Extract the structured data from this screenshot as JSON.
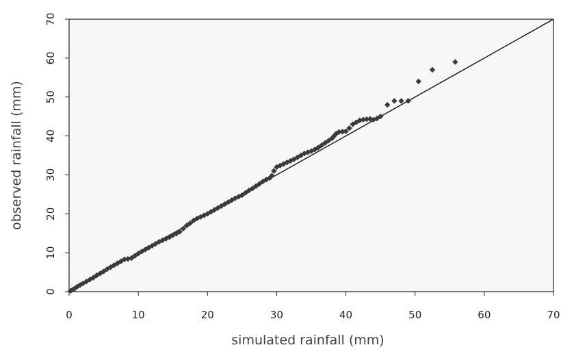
{
  "chart_data": {
    "type": "scatter",
    "title": "",
    "xlabel": "simulated rainfall (mm)",
    "ylabel": "observed rainfall (mm)",
    "xlim": [
      0,
      70
    ],
    "ylim": [
      0,
      70
    ],
    "x_ticks": [
      "0",
      "10",
      "20",
      "30",
      "40",
      "50",
      "60",
      "70"
    ],
    "y_ticks": [
      "0",
      "10",
      "20",
      "30",
      "40",
      "50",
      "60",
      "70"
    ],
    "grid": false,
    "legend": "none",
    "reference_line": {
      "from": [
        0,
        0
      ],
      "to": [
        70,
        70
      ]
    },
    "colors": {
      "background": "#ffffff",
      "plot_area": "#f7f7f7",
      "marker": "#3a3a3a",
      "line": "#2a2a2a",
      "axis": "#222222"
    },
    "series": [
      {
        "marker": "diamond",
        "points": [
          [
            0.2,
            0.2
          ],
          [
            0.5,
            0.5
          ],
          [
            0.8,
            0.8
          ],
          [
            1.2,
            1.3
          ],
          [
            1.6,
            1.7
          ],
          [
            2,
            2.1
          ],
          [
            2.5,
            2.6
          ],
          [
            3,
            3.1
          ],
          [
            3.5,
            3.6
          ],
          [
            4,
            4.2
          ],
          [
            4.5,
            4.7
          ],
          [
            5,
            5.2
          ],
          [
            5.5,
            5.8
          ],
          [
            6,
            6.3
          ],
          [
            6.5,
            6.8
          ],
          [
            7,
            7.3
          ],
          [
            7.5,
            7.8
          ],
          [
            8,
            8.3
          ],
          [
            8.5,
            8.4
          ],
          [
            9,
            8.6
          ],
          [
            9.5,
            9.2
          ],
          [
            10,
            9.8
          ],
          [
            10.5,
            10.3
          ],
          [
            11,
            10.8
          ],
          [
            11.5,
            11.3
          ],
          [
            12,
            11.8
          ],
          [
            12.5,
            12.3
          ],
          [
            13,
            12.8
          ],
          [
            13.5,
            13.2
          ],
          [
            14,
            13.6
          ],
          [
            14.5,
            14
          ],
          [
            15,
            14.5
          ],
          [
            15.5,
            14.9
          ],
          [
            16,
            15.4
          ],
          [
            16.5,
            16.2
          ],
          [
            17,
            17
          ],
          [
            17.5,
            17.6
          ],
          [
            18,
            18.3
          ],
          [
            18.5,
            18.8
          ],
          [
            19,
            19.2
          ],
          [
            19.5,
            19.6
          ],
          [
            20,
            20
          ],
          [
            20.5,
            20.5
          ],
          [
            21,
            21
          ],
          [
            21.5,
            21.5
          ],
          [
            22,
            22
          ],
          [
            22.5,
            22.5
          ],
          [
            23,
            23
          ],
          [
            23.5,
            23.5
          ],
          [
            24,
            24
          ],
          [
            24.5,
            24.4
          ],
          [
            25,
            24.8
          ],
          [
            25.5,
            25.4
          ],
          [
            26,
            26
          ],
          [
            26.5,
            26.5
          ],
          [
            27,
            27.1
          ],
          [
            27.5,
            27.7
          ],
          [
            28,
            28.3
          ],
          [
            28.5,
            28.8
          ],
          [
            29,
            29.2
          ],
          [
            29.3,
            29.8
          ],
          [
            29.6,
            31
          ],
          [
            30,
            32
          ],
          [
            30.5,
            32.4
          ],
          [
            31,
            32.8
          ],
          [
            31.5,
            33.2
          ],
          [
            32,
            33.6
          ],
          [
            32.5,
            34
          ],
          [
            33,
            34.5
          ],
          [
            33.5,
            35
          ],
          [
            34,
            35.5
          ],
          [
            34.5,
            35.8
          ],
          [
            35,
            36.1
          ],
          [
            35.5,
            36.5
          ],
          [
            36,
            37
          ],
          [
            36.5,
            37.6
          ],
          [
            37,
            38.2
          ],
          [
            37.5,
            38.8
          ],
          [
            38,
            39.4
          ],
          [
            38.3,
            40
          ],
          [
            38.6,
            40.6
          ],
          [
            39,
            41
          ],
          [
            39.5,
            41.1
          ],
          [
            40,
            41.2
          ],
          [
            40.5,
            42
          ],
          [
            41,
            43
          ],
          [
            41.5,
            43.5
          ],
          [
            42,
            44
          ],
          [
            42.5,
            44.2
          ],
          [
            43,
            44.3
          ],
          [
            43.5,
            44.4
          ],
          [
            44,
            44.2
          ],
          [
            44.5,
            44.5
          ],
          [
            45,
            45
          ],
          [
            46,
            48
          ],
          [
            47,
            49
          ],
          [
            48,
            49
          ],
          [
            49,
            49
          ],
          [
            50.5,
            54
          ],
          [
            52.5,
            57
          ],
          [
            55.8,
            59
          ]
        ]
      }
    ]
  }
}
